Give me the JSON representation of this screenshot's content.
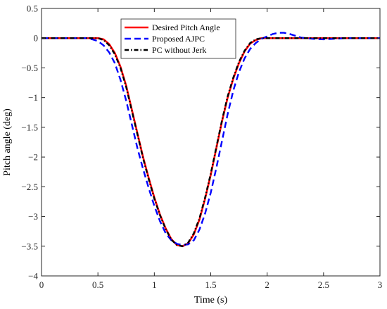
{
  "chart_data": {
    "type": "line",
    "title": "",
    "xlabel": "Time (s)",
    "ylabel": "Pitch angle (deg)",
    "xlim": [
      0,
      3
    ],
    "ylim": [
      -4,
      0.5
    ],
    "xticks": [
      0,
      0.5,
      1,
      1.5,
      2,
      2.5,
      3
    ],
    "xtick_labels": [
      "0",
      "0.5",
      "1",
      "1.5",
      "2",
      "2.5",
      "3"
    ],
    "yticks": [
      0.5,
      0,
      -0.5,
      -1,
      -1.5,
      -2,
      -2.5,
      -3,
      -3.5,
      -4
    ],
    "ytick_labels": [
      "0.5",
      "0",
      "−0.5",
      "−1",
      "−1.5",
      "−2",
      "−2.5",
      "−3",
      "−3.5",
      "−4"
    ],
    "grid": false,
    "legend_position": "top-center",
    "series": [
      {
        "name": "Desired Pitch Angle",
        "color": "#ff0000",
        "style": "solid",
        "points": [
          [
            0,
            0
          ],
          [
            0.5,
            0
          ],
          [
            0.55,
            -0.02
          ],
          [
            0.6,
            -0.1
          ],
          [
            0.65,
            -0.25
          ],
          [
            0.7,
            -0.48
          ],
          [
            0.75,
            -0.8
          ],
          [
            0.8,
            -1.2
          ],
          [
            0.85,
            -1.6
          ],
          [
            0.9,
            -2.0
          ],
          [
            0.95,
            -2.35
          ],
          [
            1.0,
            -2.68
          ],
          [
            1.05,
            -2.97
          ],
          [
            1.1,
            -3.2
          ],
          [
            1.15,
            -3.38
          ],
          [
            1.2,
            -3.48
          ],
          [
            1.25,
            -3.5
          ],
          [
            1.3,
            -3.45
          ],
          [
            1.35,
            -3.3
          ],
          [
            1.4,
            -3.05
          ],
          [
            1.45,
            -2.7
          ],
          [
            1.5,
            -2.3
          ],
          [
            1.55,
            -1.85
          ],
          [
            1.6,
            -1.4
          ],
          [
            1.65,
            -1.0
          ],
          [
            1.7,
            -0.68
          ],
          [
            1.75,
            -0.42
          ],
          [
            1.8,
            -0.22
          ],
          [
            1.85,
            -0.09
          ],
          [
            1.9,
            -0.03
          ],
          [
            1.95,
            0
          ],
          [
            2.0,
            0
          ],
          [
            3.0,
            0
          ]
        ]
      },
      {
        "name": "Proposed AJPC",
        "color": "#0000ff",
        "style": "dashed",
        "points": [
          [
            0,
            0
          ],
          [
            0.4,
            0
          ],
          [
            0.45,
            -0.02
          ],
          [
            0.5,
            -0.05
          ],
          [
            0.55,
            -0.12
          ],
          [
            0.6,
            -0.24
          ],
          [
            0.65,
            -0.42
          ],
          [
            0.7,
            -0.7
          ],
          [
            0.75,
            -1.05
          ],
          [
            0.8,
            -1.45
          ],
          [
            0.85,
            -1.85
          ],
          [
            0.9,
            -2.2
          ],
          [
            0.95,
            -2.52
          ],
          [
            1.0,
            -2.82
          ],
          [
            1.05,
            -3.08
          ],
          [
            1.1,
            -3.28
          ],
          [
            1.15,
            -3.4
          ],
          [
            1.2,
            -3.46
          ],
          [
            1.25,
            -3.48
          ],
          [
            1.3,
            -3.47
          ],
          [
            1.35,
            -3.4
          ],
          [
            1.4,
            -3.22
          ],
          [
            1.45,
            -2.95
          ],
          [
            1.5,
            -2.6
          ],
          [
            1.55,
            -2.18
          ],
          [
            1.6,
            -1.73
          ],
          [
            1.65,
            -1.28
          ],
          [
            1.7,
            -0.88
          ],
          [
            1.75,
            -0.57
          ],
          [
            1.8,
            -0.34
          ],
          [
            1.85,
            -0.18
          ],
          [
            1.9,
            -0.08
          ],
          [
            1.95,
            -0.01
          ],
          [
            2.0,
            0.03
          ],
          [
            2.05,
            0.07
          ],
          [
            2.1,
            0.09
          ],
          [
            2.15,
            0.09
          ],
          [
            2.2,
            0.07
          ],
          [
            2.25,
            0.04
          ],
          [
            2.3,
            0.01
          ],
          [
            2.4,
            -0.01
          ],
          [
            2.5,
            -0.02
          ],
          [
            2.6,
            -0.01
          ],
          [
            2.7,
            0
          ],
          [
            3.0,
            0
          ]
        ]
      },
      {
        "name": "PC without Jerk",
        "color": "#000000",
        "style": "dashdot",
        "points": [
          [
            0,
            0
          ],
          [
            0.5,
            0
          ],
          [
            0.55,
            -0.03
          ],
          [
            0.6,
            -0.12
          ],
          [
            0.65,
            -0.27
          ],
          [
            0.7,
            -0.5
          ],
          [
            0.75,
            -0.82
          ],
          [
            0.8,
            -1.22
          ],
          [
            0.85,
            -1.62
          ],
          [
            0.9,
            -2.02
          ],
          [
            0.95,
            -2.37
          ],
          [
            1.0,
            -2.7
          ],
          [
            1.05,
            -2.98
          ],
          [
            1.1,
            -3.21
          ],
          [
            1.15,
            -3.39
          ],
          [
            1.2,
            -3.48
          ],
          [
            1.25,
            -3.5
          ],
          [
            1.3,
            -3.44
          ],
          [
            1.35,
            -3.28
          ],
          [
            1.4,
            -3.03
          ],
          [
            1.45,
            -2.68
          ],
          [
            1.5,
            -2.28
          ],
          [
            1.55,
            -1.83
          ],
          [
            1.6,
            -1.38
          ],
          [
            1.65,
            -0.98
          ],
          [
            1.7,
            -0.66
          ],
          [
            1.75,
            -0.4
          ],
          [
            1.8,
            -0.21
          ],
          [
            1.85,
            -0.08
          ],
          [
            1.9,
            -0.02
          ],
          [
            1.95,
            0
          ],
          [
            2.0,
            0
          ],
          [
            3.0,
            0
          ]
        ]
      }
    ]
  }
}
